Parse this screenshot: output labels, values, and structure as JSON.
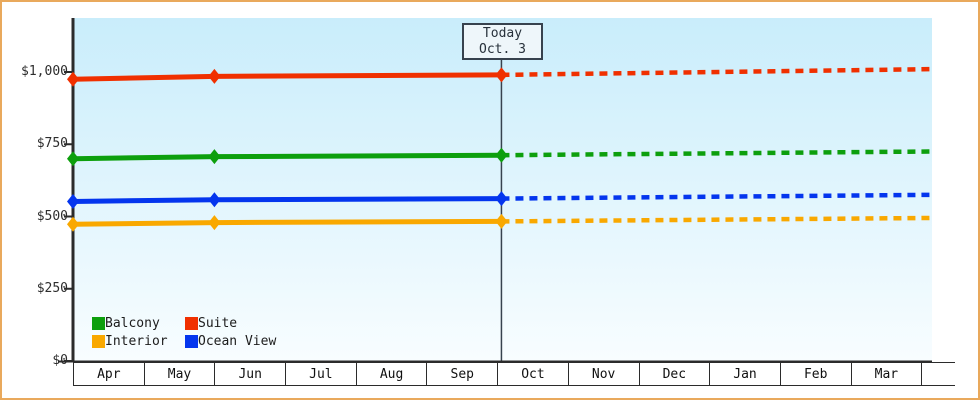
{
  "chart_data": {
    "type": "line",
    "title": "",
    "x_axis": {
      "months": [
        "Apr",
        "May",
        "Jun",
        "Jul",
        "Aug",
        "Sep",
        "Oct",
        "Nov",
        "Dec",
        "Jan",
        "Feb",
        "Mar"
      ]
    },
    "y_axis": {
      "tick_labels": [
        "$1,000",
        "$750",
        "$500",
        "$250",
        "$0"
      ],
      "tick_values": [
        1000,
        750,
        500,
        250,
        0
      ],
      "range": [
        0,
        1050
      ]
    },
    "today": {
      "line1": "Today",
      "line2": "Oct. 3",
      "month_pos": 6.06
    },
    "series": [
      {
        "name": "Balcony",
        "color": "#0d9f0d",
        "actual": [
          [
            0,
            700
          ],
          [
            2,
            707
          ],
          [
            6.06,
            712
          ]
        ],
        "projected": [
          [
            6.06,
            712
          ],
          [
            12.15,
            725
          ]
        ]
      },
      {
        "name": "Suite",
        "color": "#f03000",
        "actual": [
          [
            0,
            975
          ],
          [
            2,
            985
          ],
          [
            6.06,
            990
          ]
        ],
        "projected": [
          [
            6.06,
            990
          ],
          [
            12.15,
            1010
          ]
        ]
      },
      {
        "name": "Interior",
        "color": "#f9a800",
        "actual": [
          [
            0,
            473
          ],
          [
            2,
            479
          ],
          [
            6.06,
            483
          ]
        ],
        "projected": [
          [
            6.06,
            483
          ],
          [
            12.15,
            495
          ]
        ]
      },
      {
        "name": "Ocean View",
        "color": "#0435ee",
        "actual": [
          [
            0,
            552
          ],
          [
            2,
            558
          ],
          [
            6.06,
            562
          ]
        ],
        "projected": [
          [
            6.06,
            562
          ],
          [
            12.15,
            575
          ]
        ]
      }
    ],
    "legend_position": "bottom-left",
    "style": {
      "frame_color": "#e9a95c",
      "axis_color": "#2b2b2b",
      "plot_bg_top": "#c9edfb",
      "plot_bg_bottom": "#f8fdff"
    }
  }
}
